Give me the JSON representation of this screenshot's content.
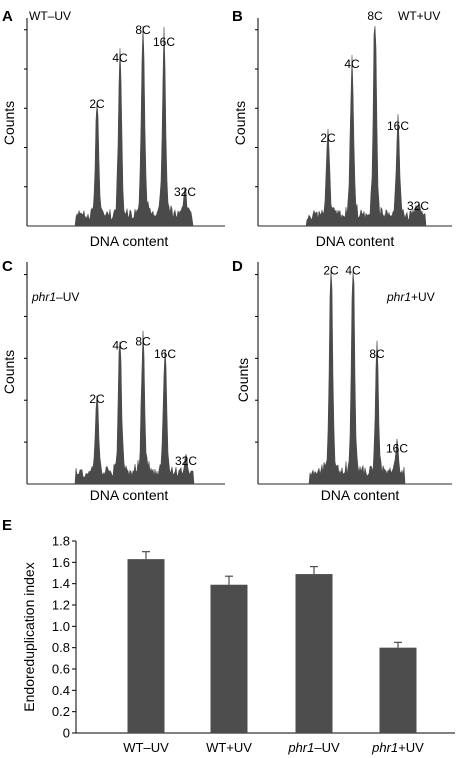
{
  "colors": {
    "bar": "#4d4d4d",
    "axis": "#000000",
    "histogram": "#4a4a4a"
  },
  "chart_data": [
    {
      "type": "histogram",
      "panel": "A",
      "condition": "WT–UV",
      "xlabel": "DNA content",
      "ylabel": "Counts",
      "peaks": [
        {
          "label": "2C",
          "x": 2,
          "value": 0.56
        },
        {
          "label": "4C",
          "x": 4,
          "value": 0.79
        },
        {
          "label": "8C",
          "x": 8,
          "value": 0.93
        },
        {
          "label": "16C",
          "x": 16,
          "value": 0.87
        },
        {
          "label": "32C",
          "x": 32,
          "value": 0.12
        }
      ]
    },
    {
      "type": "histogram",
      "panel": "B",
      "condition": "WT+UV",
      "xlabel": "DNA content",
      "ylabel": "Counts",
      "peaks": [
        {
          "label": "2C",
          "x": 2,
          "value": 0.39
        },
        {
          "label": "4C",
          "x": 4,
          "value": 0.76
        },
        {
          "label": "8C",
          "x": 8,
          "value": 1.0
        },
        {
          "label": "16C",
          "x": 16,
          "value": 0.45
        },
        {
          "label": "32C",
          "x": 32,
          "value": 0.05
        }
      ]
    },
    {
      "type": "histogram",
      "panel": "C",
      "condition": "phr1–UV",
      "condition_italic": "phr1",
      "condition_rest": "–UV",
      "xlabel": "DNA content",
      "ylabel": "Counts",
      "peaks": [
        {
          "label": "2C",
          "x": 2,
          "value": 0.35
        },
        {
          "label": "4C",
          "x": 4,
          "value": 0.6
        },
        {
          "label": "8C",
          "x": 8,
          "value": 0.62
        },
        {
          "label": "16C",
          "x": 16,
          "value": 0.56
        },
        {
          "label": "32C",
          "x": 32,
          "value": 0.06
        }
      ]
    },
    {
      "type": "histogram",
      "panel": "D",
      "condition": "phr1+UV",
      "condition_italic": "phr1",
      "condition_rest": "+UV",
      "xlabel": "DNA content",
      "ylabel": "Counts",
      "peaks": [
        {
          "label": "2C",
          "x": 2,
          "value": 0.95
        },
        {
          "label": "4C",
          "x": 4,
          "value": 0.95
        },
        {
          "label": "8C",
          "x": 8,
          "value": 0.56
        },
        {
          "label": "16C",
          "x": 16,
          "value": 0.12
        }
      ]
    },
    {
      "type": "bar",
      "panel": "E",
      "ylabel": "Endoreduplication index",
      "ylim": [
        0,
        1.8
      ],
      "yticks": [
        "0",
        "0.2",
        "0.4",
        "0.6",
        "0.8",
        "1.0",
        "1.2",
        "1.4",
        "1.6",
        "1.8"
      ],
      "categories": [
        {
          "italic": "",
          "rest": "WT–UV",
          "label": "WT–UV"
        },
        {
          "italic": "",
          "rest": "WT+UV",
          "label": "WT+UV"
        },
        {
          "italic": "phr1",
          "rest": "–UV",
          "label": "phr1–UV"
        },
        {
          "italic": "phr1",
          "rest": "+UV",
          "label": "phr1+UV"
        }
      ],
      "values": [
        1.63,
        1.39,
        1.49,
        0.8
      ],
      "errors": [
        0.07,
        0.08,
        0.07,
        0.05
      ]
    }
  ]
}
